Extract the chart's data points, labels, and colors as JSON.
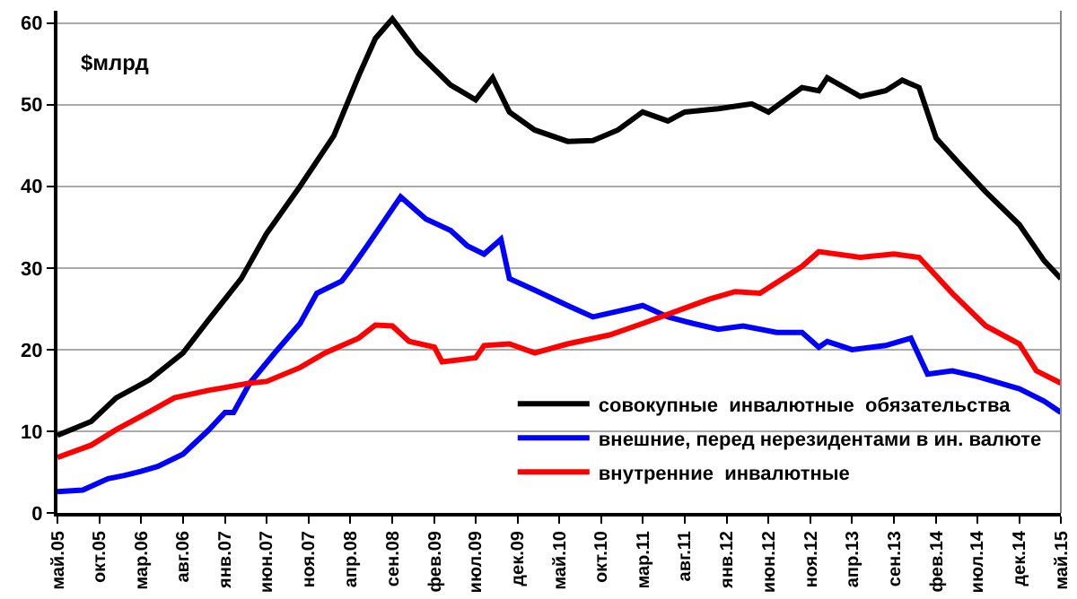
{
  "chart_data": {
    "type": "line",
    "ylabel": "$млрд",
    "xlim": [
      "2005-05",
      "2015-05"
    ],
    "xticks": [
      {
        "value": "2005-05",
        "label": "май.05"
      },
      {
        "value": "2005-10",
        "label": "окт.05"
      },
      {
        "value": "2006-03",
        "label": "мар.06"
      },
      {
        "value": "2006-08",
        "label": "авг.06"
      },
      {
        "value": "2007-01",
        "label": "янв.07"
      },
      {
        "value": "2007-06",
        "label": "июн.07"
      },
      {
        "value": "2007-11",
        "label": "ноя.07"
      },
      {
        "value": "2008-04",
        "label": "апр.08"
      },
      {
        "value": "2008-09",
        "label": "сен.08"
      },
      {
        "value": "2009-02",
        "label": "фев.09"
      },
      {
        "value": "2009-07",
        "label": "июл.09"
      },
      {
        "value": "2009-12",
        "label": "дек.09"
      },
      {
        "value": "2010-05",
        "label": "май.10"
      },
      {
        "value": "2010-10",
        "label": "окт.10"
      },
      {
        "value": "2011-03",
        "label": "мар.11"
      },
      {
        "value": "2011-08",
        "label": "авг.11"
      },
      {
        "value": "2012-01",
        "label": "янв.12"
      },
      {
        "value": "2012-06",
        "label": "июн.12"
      },
      {
        "value": "2012-11",
        "label": "ноя.12"
      },
      {
        "value": "2013-04",
        "label": "апр.13"
      },
      {
        "value": "2013-09",
        "label": "сен.13"
      },
      {
        "value": "2014-02",
        "label": "фев.14"
      },
      {
        "value": "2014-07",
        "label": "июл.14"
      },
      {
        "value": "2014-12",
        "label": "дек.14"
      },
      {
        "value": "2015-05",
        "label": "май.15"
      }
    ],
    "ylim": [
      0,
      61.5
    ],
    "yticks": [
      0,
      10,
      20,
      30,
      40,
      50,
      60
    ],
    "grid": "y",
    "legend": "bottom right",
    "marker": "none",
    "line_style": "solid",
    "series": [
      {
        "name": "совокупные  инвалютные  обязательства",
        "color": "#000000",
        "x": [
          "2005-05",
          "2005-09",
          "2005-12",
          "2006-04",
          "2006-08",
          "2006-11",
          "2007-03",
          "2007-06",
          "2007-10",
          "2008-02",
          "2008-05",
          "2008-07",
          "2008-09",
          "2008-12",
          "2009-04",
          "2009-07",
          "2009-09",
          "2009-11",
          "2010-02",
          "2010-06",
          "2010-09",
          "2010-12",
          "2011-03",
          "2011-06",
          "2011-08",
          "2011-12",
          "2012-04",
          "2012-06",
          "2012-10",
          "2012-12",
          "2013-01",
          "2013-05",
          "2013-08",
          "2013-10",
          "2013-12",
          "2014-02",
          "2014-05",
          "2014-08",
          "2014-12",
          "2015-03",
          "2015-05"
        ],
        "values": [
          9.5,
          11.2,
          14.1,
          16.3,
          19.6,
          23.6,
          28.7,
          34.2,
          40,
          46.2,
          53.5,
          58.1,
          60.5,
          56.4,
          52.4,
          50.6,
          53.3,
          49.1,
          46.9,
          45.5,
          45.6,
          46.9,
          49.1,
          48,
          49.1,
          49.5,
          50.1,
          49.1,
          52.1,
          51.7,
          53.3,
          51,
          51.7,
          53,
          52.1,
          45.9,
          42.6,
          39.3,
          35.3,
          30.9,
          28.7
        ]
      },
      {
        "name": "внешние, перед нерезидентами в ин. валюте",
        "color": "#0000ff",
        "x": [
          "2005-05",
          "2005-08",
          "2005-11",
          "2006-01",
          "2006-03",
          "2006-05",
          "2006-08",
          "2006-11",
          "2007-01",
          "2007-02",
          "2007-04",
          "2007-07",
          "2007-10",
          "2007-12",
          "2008-03",
          "2008-04",
          "2008-06",
          "2008-08",
          "2008-10",
          "2009-01",
          "2009-04",
          "2009-06",
          "2009-08",
          "2009-10",
          "2009-11",
          "2010-02",
          "2010-06",
          "2010-09",
          "2010-12",
          "2011-03",
          "2011-06",
          "2011-09",
          "2011-12",
          "2012-03",
          "2012-07",
          "2012-10",
          "2012-12",
          "2013-01",
          "2013-04",
          "2013-08",
          "2013-11",
          "2014-01",
          "2014-04",
          "2014-07",
          "2014-12",
          "2015-03",
          "2015-05"
        ],
        "values": [
          2.6,
          2.8,
          4.2,
          4.6,
          5.1,
          5.7,
          7.2,
          10.1,
          12.3,
          12.3,
          15.9,
          19.6,
          23.2,
          26.9,
          28.4,
          29.8,
          32.7,
          35.7,
          38.7,
          36,
          34.6,
          32.7,
          31.7,
          33.5,
          28.7,
          27.3,
          25.4,
          24,
          24.7,
          25.4,
          24,
          23.2,
          22.5,
          22.9,
          22.1,
          22.1,
          20.3,
          21,
          20,
          20.5,
          21.4,
          17,
          17.4,
          16.7,
          15.2,
          13.7,
          12.3
        ]
      },
      {
        "name": "внутренние  инвалютные",
        "color": "#ff0000",
        "x": [
          "2005-05",
          "2005-09",
          "2005-12",
          "2006-04",
          "2006-07",
          "2006-11",
          "2007-04",
          "2007-06",
          "2007-10",
          "2008-01",
          "2008-05",
          "2008-07",
          "2008-09",
          "2008-11",
          "2009-02",
          "2009-03",
          "2009-07",
          "2009-08",
          "2009-11",
          "2010-02",
          "2010-06",
          "2010-11",
          "2011-03",
          "2011-07",
          "2011-11",
          "2012-02",
          "2012-05",
          "2012-10",
          "2012-12",
          "2013-05",
          "2013-09",
          "2013-12",
          "2014-04",
          "2014-08",
          "2014-12",
          "2015-02",
          "2015-05"
        ],
        "values": [
          6.8,
          8.3,
          10.2,
          12.4,
          14.1,
          15,
          15.9,
          16.1,
          17.8,
          19.6,
          21.4,
          23,
          22.9,
          21,
          20.3,
          18.5,
          19,
          20.5,
          20.7,
          19.6,
          20.7,
          21.8,
          23.2,
          24.7,
          26.2,
          27.1,
          26.9,
          30.2,
          32,
          31.3,
          31.7,
          31.3,
          26.9,
          22.9,
          20.7,
          17.4,
          15.9
        ]
      }
    ]
  }
}
